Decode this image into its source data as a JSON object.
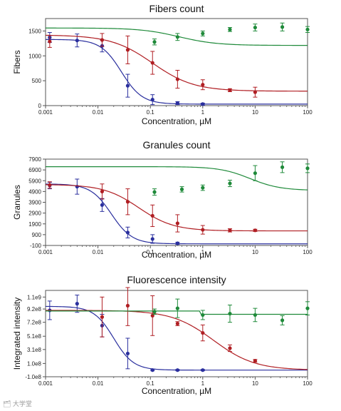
{
  "watermark": "🗂 大学堂",
  "colors": {
    "blue": "#2a2f9e",
    "red": "#b01e23",
    "green": "#1f8a3a",
    "axis": "#555555"
  },
  "chart_data": [
    {
      "type": "line",
      "title": "Fibers count",
      "xlabel": "Concentration, µM",
      "ylabel": "Fibers",
      "xscale": "log",
      "xlim": [
        0.001,
        100
      ],
      "ylim": [
        0,
        1750
      ],
      "xticks": [
        0.001,
        0.01,
        0.1,
        1,
        10,
        100
      ],
      "xtick_labels": [
        "0.001",
        "0.01",
        "0.1",
        "1",
        "10",
        "100"
      ],
      "yticks": [
        0,
        500,
        1000,
        1500
      ],
      "ytick_labels": [
        "0",
        "500",
        "1000",
        "1500"
      ],
      "series": [
        {
          "color": "blue",
          "x": [
            0.0012,
            0.004,
            0.012,
            0.037,
            0.11,
            0.33,
            1
          ],
          "y": [
            1370,
            1310,
            1200,
            400,
            120,
            50,
            30
          ],
          "err": [
            100,
            130,
            120,
            230,
            100,
            30,
            20
          ],
          "fit": {
            "bottom": 30,
            "top": 1330,
            "ec50": 0.028,
            "hill": 2.2
          }
        },
        {
          "color": "red",
          "x": [
            0.0012,
            0.012,
            0.037,
            0.11,
            0.33,
            1,
            3.3,
            10
          ],
          "y": [
            1290,
            1320,
            1120,
            860,
            530,
            420,
            310,
            270
          ],
          "err": [
            120,
            130,
            280,
            230,
            180,
            100,
            30,
            100
          ],
          "fit": {
            "bottom": 290,
            "top": 1420,
            "ec50": 0.11,
            "hill": 1.1
          }
        },
        {
          "color": "green",
          "x": [
            0.12,
            0.33,
            1,
            3.3,
            10,
            33,
            100
          ],
          "y": [
            1280,
            1380,
            1450,
            1530,
            1570,
            1580,
            1530
          ],
          "err": [
            60,
            70,
            50,
            40,
            70,
            80,
            60
          ],
          "fit": {
            "bottom": 1210,
            "top": 1560,
            "ec50": 0.35,
            "hill": 1.2
          }
        }
      ]
    },
    {
      "type": "line",
      "title": "Granules count",
      "xlabel": "Concentration, µM",
      "ylabel": "Granules",
      "xscale": "log",
      "xlim": [
        0.001,
        100
      ],
      "ylim": [
        -100,
        7900
      ],
      "xticks": [
        0.001,
        0.01,
        0.1,
        1,
        10,
        100
      ],
      "xtick_labels": [
        "0.001",
        "0.01",
        "0.1",
        "1",
        "10",
        "100"
      ],
      "yticks": [
        -100,
        900,
        1900,
        2900,
        3900,
        4900,
        5900,
        6900,
        7900
      ],
      "ytick_labels": [
        "-100",
        "900",
        "1900",
        "2900",
        "3900",
        "4900",
        "5900",
        "6900",
        "7900"
      ],
      "series": [
        {
          "color": "blue",
          "x": [
            0.0012,
            0.004,
            0.012,
            0.037,
            0.11,
            0.33
          ],
          "y": [
            5450,
            5350,
            3650,
            1100,
            500,
            100
          ],
          "err": [
            300,
            700,
            600,
            500,
            400,
            100
          ],
          "fit": {
            "bottom": 50,
            "top": 5600,
            "ec50": 0.018,
            "hill": 2.2
          }
        },
        {
          "color": "red",
          "x": [
            0.0012,
            0.012,
            0.037,
            0.11,
            0.33,
            1,
            3.3,
            10
          ],
          "y": [
            5500,
            4900,
            3950,
            2650,
            1950,
            1350,
            1300,
            1300
          ],
          "err": [
            300,
            700,
            1200,
            1000,
            800,
            400,
            150,
            100
          ],
          "fit": {
            "bottom": 1250,
            "top": 5550,
            "ec50": 0.06,
            "hill": 1.3
          }
        },
        {
          "color": "green",
          "x": [
            0.12,
            0.4,
            1,
            3.3,
            10,
            33,
            100
          ],
          "y": [
            4850,
            5100,
            5250,
            5650,
            6600,
            7150,
            7050
          ],
          "err": [
            300,
            250,
            250,
            300,
            700,
            500,
            400
          ],
          "fit": {
            "bottom": 5000,
            "top": 7200,
            "ec50": 8,
            "hill": 1.5
          }
        }
      ]
    },
    {
      "type": "line",
      "title": "Fluorescence intensity",
      "xlabel": "Concentration, µM",
      "ylabel": "Integrated intensity",
      "xscale": "log",
      "xlim": [
        0.001,
        100
      ],
      "ylim": [
        -0.1,
        1.2
      ],
      "yunit": "1e9",
      "xticks": [
        0.001,
        0.01,
        0.1,
        1,
        10,
        100
      ],
      "xtick_labels": [
        "0.001",
        "0.01",
        "0.1",
        "1",
        "10",
        "100"
      ],
      "yticks": [
        -0.1,
        0.1,
        0.31,
        0.51,
        0.72,
        0.92,
        1.1
      ],
      "ytick_labels": [
        "-1.0e8",
        "1.0e8",
        "3.1e8",
        "5.1e8",
        "7.2e8",
        "9.2e8",
        "1.1e9"
      ],
      "series": [
        {
          "color": "blue",
          "x": [
            0.0012,
            0.004,
            0.012,
            0.037,
            0.11,
            0.33,
            1
          ],
          "y": [
            0.9,
            1.0,
            0.67,
            0.25,
            0.0,
            0.0,
            0.0
          ],
          "err": [
            0.14,
            0.13,
            0.17,
            0.23,
            0.01,
            0.01,
            0.01
          ],
          "fit": {
            "bottom": 0.0,
            "top": 0.96,
            "ec50": 0.02,
            "hill": 2.3
          }
        },
        {
          "color": "red",
          "x": [
            0.012,
            0.037,
            0.11,
            0.33,
            1,
            3.3,
            10
          ],
          "y": [
            0.8,
            0.97,
            0.82,
            0.7,
            0.56,
            0.33,
            0.14
          ],
          "err": [
            0.3,
            0.3,
            0.3,
            0.03,
            0.12,
            0.05,
            0.02
          ],
          "fit": {
            "bottom": 0.0,
            "top": 0.9,
            "ec50": 1.6,
            "hill": 1.1
          }
        },
        {
          "color": "green",
          "x": [
            0.12,
            0.33,
            1,
            3.3,
            10,
            33,
            100
          ],
          "y": [
            0.88,
            0.93,
            0.83,
            0.85,
            0.83,
            0.75,
            0.93
          ],
          "err": [
            0.04,
            0.14,
            0.07,
            0.13,
            0.1,
            0.07,
            0.1
          ],
          "fit": {
            "type": "step",
            "before": 0.89,
            "after": 0.84,
            "at": 0.9
          }
        }
      ]
    }
  ]
}
